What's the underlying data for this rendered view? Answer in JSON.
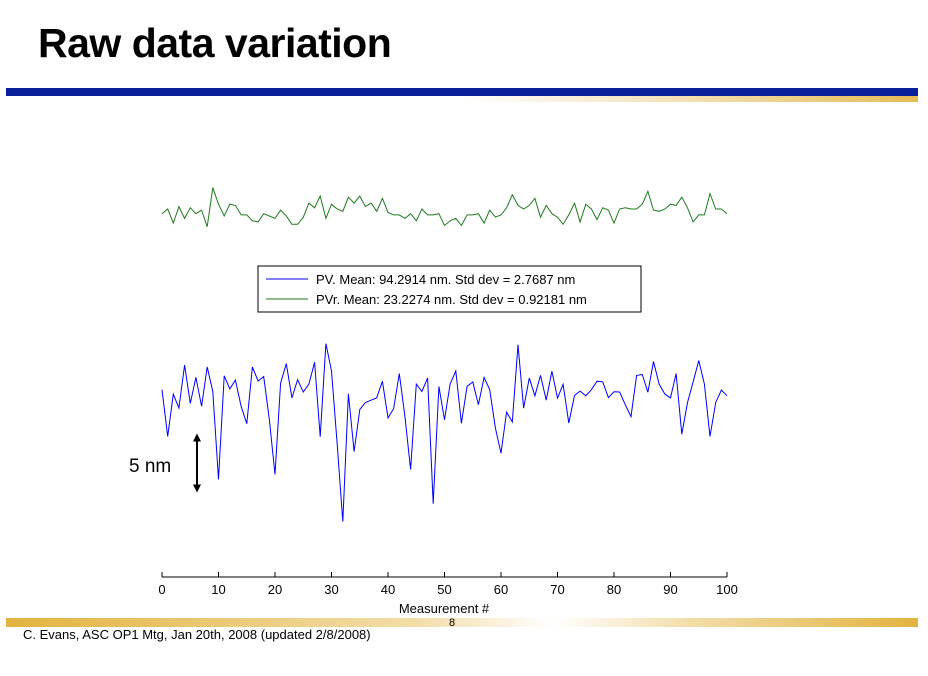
{
  "slide": {
    "title": "Raw data variation",
    "footer": "C. Evans, ASC OP1 Mtg, Jan 20th, 2008 (updated 2/8/2008)",
    "page_number": "8"
  },
  "colors": {
    "title_bar": "#0a1f9a",
    "accent_gold": "#e2b33e",
    "pv_series": "#0000ff",
    "pvr_series": "#1f7a1f"
  },
  "chart_data": {
    "type": "line",
    "title": "",
    "xlabel": "Measurement #",
    "ylabel": "",
    "xlim": [
      0,
      100
    ],
    "x_ticks": [
      "0",
      "10",
      "20",
      "30",
      "40",
      "50",
      "60",
      "70",
      "80",
      "90",
      "100"
    ],
    "y_axis_visible": false,
    "scale_bar_label": "5 nm",
    "scale_bar_nm": 5,
    "legend_position": "upper-center",
    "series": [
      {
        "name": "PV. Mean: 94.2914 nm. Std dev = 2.7687 nm",
        "color": "#0000ff",
        "values": [
          95.25,
          91.29,
          94.88,
          93.7,
          97.33,
          94.09,
          96.29,
          93.84,
          97.18,
          95.1,
          87.65,
          96.43,
          95.32,
          96.06,
          93.85,
          92.37,
          97.18,
          95.98,
          96.36,
          92.69,
          88.06,
          95.8,
          97.46,
          94.55,
          96.09,
          95.05,
          95.72,
          97.57,
          91.27,
          99.16,
          96.84,
          90.73,
          84.07,
          94.9,
          90.0,
          93.58,
          94.16,
          94.36,
          94.55,
          95.97,
          92.86,
          93.64,
          96.61,
          93.0,
          88.48,
          95.72,
          95.1,
          96.24,
          85.59,
          95.53,
          92.7,
          95.72,
          96.84,
          92.4,
          95.54,
          95.9,
          93.98,
          96.29,
          95.25,
          92.0,
          89.87,
          93.35,
          92.51,
          99.06,
          93.69,
          96.24,
          94.73,
          96.46,
          94.37,
          96.82,
          94.54,
          95.7,
          92.43,
          94.76,
          95.13,
          94.73,
          95.25,
          95.97,
          95.92,
          94.58,
          95.07,
          95.05,
          93.98,
          92.97,
          96.46,
          96.54,
          95.04,
          97.64,
          95.71,
          94.88,
          94.55,
          96.61,
          91.48,
          94.16,
          95.9,
          97.72,
          95.72,
          91.29,
          94.16,
          95.22,
          94.73
        ]
      },
      {
        "name": "PVr. Mean: 23.2274 nm. Std dev = 0.92181 nm",
        "color": "#1f7a1f",
        "values": [
          23.0,
          23.4,
          22.2,
          23.6,
          22.6,
          23.5,
          23.0,
          23.3,
          21.9,
          25.2,
          23.8,
          22.8,
          23.8,
          23.7,
          22.9,
          22.9,
          22.4,
          22.3,
          23.0,
          22.8,
          22.6,
          23.3,
          22.8,
          22.1,
          22.1,
          22.7,
          23.9,
          23.5,
          24.5,
          22.6,
          23.8,
          23.4,
          23.2,
          24.4,
          23.9,
          24.5,
          23.6,
          23.9,
          23.2,
          24.3,
          23.1,
          22.9,
          22.9,
          22.6,
          23.0,
          22.4,
          23.4,
          22.9,
          22.9,
          23.0,
          22.0,
          22.4,
          22.6,
          22.0,
          22.9,
          22.9,
          23.0,
          22.2,
          23.3,
          22.7,
          22.9,
          23.5,
          24.6,
          23.7,
          23.4,
          23.7,
          24.3,
          22.7,
          23.7,
          23.0,
          22.7,
          22.1,
          22.9,
          23.9,
          22.3,
          23.8,
          23.4,
          22.5,
          23.5,
          23.3,
          22.2,
          23.4,
          23.5,
          23.4,
          23.4,
          23.8,
          24.9,
          23.3,
          23.2,
          23.4,
          23.8,
          23.7,
          24.4,
          23.5,
          22.3,
          22.9,
          22.9,
          24.7,
          23.4,
          23.4,
          23.0
        ]
      }
    ]
  }
}
